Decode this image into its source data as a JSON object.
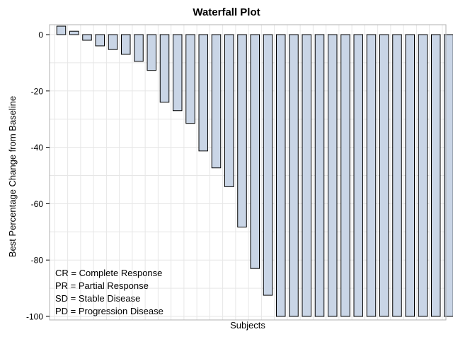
{
  "chart_data": {
    "type": "bar",
    "title": "Waterfall Plot",
    "xlabel": "Subjects",
    "ylabel": "Best Percentage Change from Baseline",
    "ylim": [
      -100,
      3
    ],
    "yticks": [
      0,
      -20,
      -40,
      -60,
      -80,
      -100
    ],
    "values": [
      3,
      1.2,
      -2,
      -4,
      -5.3,
      -7,
      -9.5,
      -12.7,
      -24,
      -27,
      -31.5,
      -41.3,
      -47.3,
      -54,
      -68.3,
      -83,
      -92.5,
      -100,
      -100,
      -100,
      -100,
      -100,
      -100,
      -100,
      -100,
      -100,
      -100,
      -100,
      -100,
      -100,
      -100
    ],
    "bar_fill": "#c9d5e6",
    "bar_stroke": "#000000",
    "grid": true,
    "grid_color": "#e6e6e6",
    "annotations": [
      "CR = Complete Response",
      "PR = Partial Response",
      "SD = Stable Disease",
      "PD = Progression Disease"
    ]
  }
}
